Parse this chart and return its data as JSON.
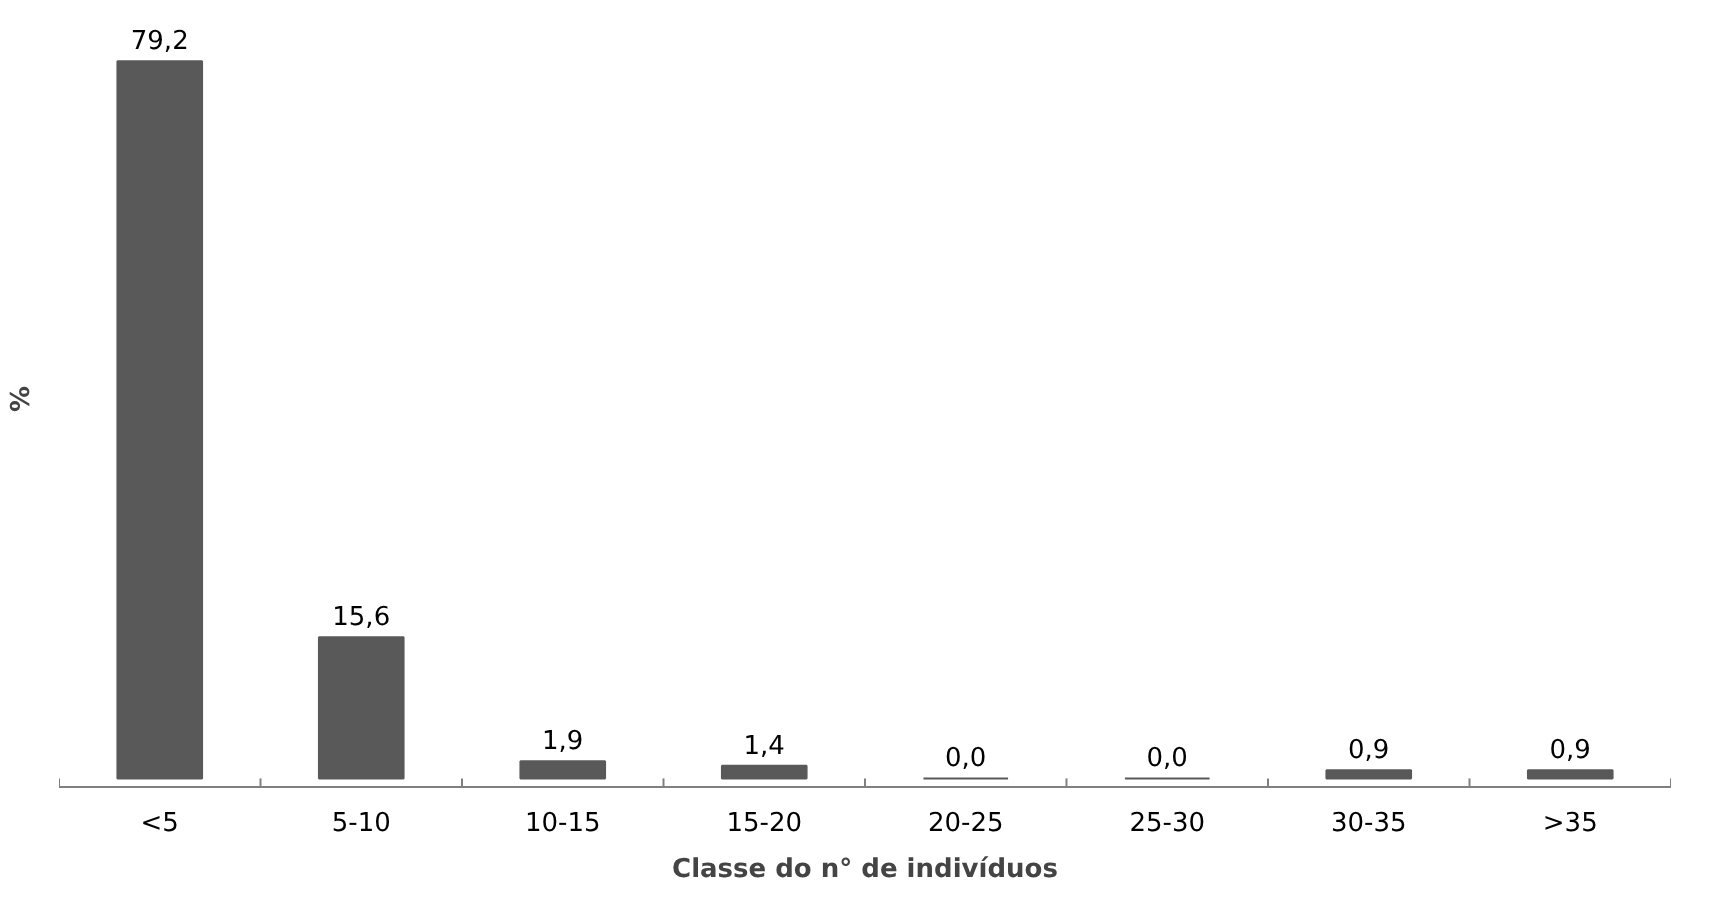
{
  "chart_data": {
    "type": "bar",
    "xlabel": "Classe do n° de indivíduos",
    "ylabel": "%",
    "categories": [
      "<5",
      "5-10",
      "10-15",
      "15-20",
      "20-25",
      "25-30",
      "30-35",
      ">35"
    ],
    "values": [
      79.2,
      15.6,
      1.9,
      1.4,
      0.0,
      0.0,
      0.9,
      0.9
    ],
    "value_labels": [
      "79,2",
      "15,6",
      "1,9",
      "1,4",
      "0,0",
      "0,0",
      "0,9",
      "0,9"
    ],
    "color": "#595959",
    "grid": false
  }
}
